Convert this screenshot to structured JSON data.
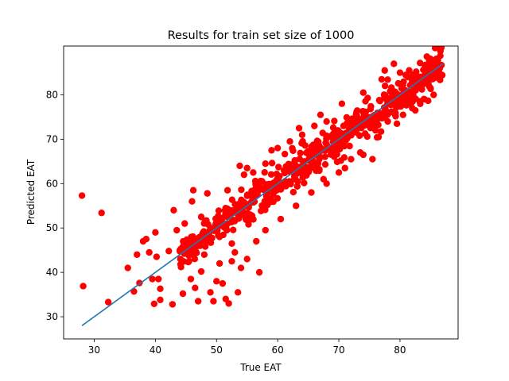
{
  "chart_data": {
    "type": "scatter",
    "title": "Results for train set size of 1000",
    "xlabel": "True EAT",
    "ylabel": "Predicted EAT",
    "xlim": [
      25,
      89.5
    ],
    "ylim": [
      25,
      91
    ],
    "xticks": [
      30,
      40,
      50,
      60,
      70,
      80
    ],
    "yticks": [
      30,
      40,
      50,
      60,
      70,
      80
    ],
    "grid": false,
    "point_color": "#ff0000",
    "line_color": "#1f77b4",
    "reference_line": {
      "x": [
        28,
        87
      ],
      "y": [
        28,
        87
      ]
    },
    "points": [
      [
        28,
        57.3
      ],
      [
        28.2,
        36.9
      ],
      [
        31.2,
        53.4
      ],
      [
        32.3,
        33.3
      ],
      [
        35.5,
        41.0
      ],
      [
        36.5,
        35.7
      ],
      [
        37.0,
        44.0
      ],
      [
        37.4,
        37.6
      ],
      [
        38.0,
        47.0
      ],
      [
        38.5,
        47.5
      ],
      [
        39.0,
        44.5
      ],
      [
        39.5,
        38.5
      ],
      [
        40.0,
        49.0
      ],
      [
        40.2,
        43.5
      ],
      [
        40.5,
        38.5
      ],
      [
        40.8,
        36.3
      ],
      [
        39.8,
        32.9
      ],
      [
        40.8,
        33.8
      ],
      [
        42.2,
        44.8
      ],
      [
        42.8,
        32.8
      ],
      [
        43.0,
        54.0
      ],
      [
        44.0,
        45.0
      ],
      [
        44.5,
        35.2
      ],
      [
        45.0,
        47.0
      ],
      [
        45.5,
        42.5
      ],
      [
        45.8,
        38.5
      ],
      [
        46.2,
        58.5
      ],
      [
        46.5,
        36.5
      ],
      [
        47.0,
        33.5
      ],
      [
        47.5,
        40.2
      ],
      [
        48.0,
        44.0
      ],
      [
        48.5,
        57.8
      ],
      [
        49.0,
        35.5
      ],
      [
        49.5,
        33.5
      ],
      [
        50.0,
        38.0
      ],
      [
        50.5,
        42.0
      ],
      [
        51.0,
        37.5
      ],
      [
        51.5,
        34.0
      ],
      [
        52.0,
        33.0
      ],
      [
        52.5,
        42.5
      ],
      [
        53.0,
        44.5
      ],
      [
        53.5,
        35.5
      ],
      [
        54.0,
        41.0
      ],
      [
        55.0,
        43.0
      ],
      [
        56.5,
        47.0
      ],
      [
        57.0,
        40.0
      ],
      [
        55.5,
        53.0
      ],
      [
        53.8,
        64.0
      ],
      [
        54.5,
        62.0
      ],
      [
        56.0,
        62.5
      ],
      [
        58.0,
        64.5
      ],
      [
        60.0,
        68.0
      ],
      [
        62.0,
        69.5
      ],
      [
        64.0,
        71.0
      ],
      [
        66.0,
        73.0
      ],
      [
        68.0,
        74.0
      ],
      [
        67.5,
        61.0
      ],
      [
        70.0,
        62.5
      ],
      [
        72.0,
        65.5
      ],
      [
        74.0,
        66.5
      ],
      [
        75.5,
        65.5
      ],
      [
        76.0,
        72.0
      ],
      [
        77.5,
        85.5
      ],
      [
        79.0,
        87.0
      ],
      [
        80.0,
        85.0
      ],
      [
        81.5,
        85.5
      ],
      [
        83.0,
        82.0
      ],
      [
        85.0,
        87.0
      ],
      [
        86.5,
        86.0
      ],
      [
        84.0,
        79.0
      ],
      [
        82.0,
        77.0
      ],
      [
        80.5,
        75.5
      ],
      [
        78.0,
        74.0
      ],
      [
        46.0,
        56.0
      ],
      [
        47.5,
        52.5
      ],
      [
        48.8,
        49.2
      ],
      [
        50.5,
        48.0
      ],
      [
        52.5,
        46.5
      ],
      [
        58.0,
        49.5
      ],
      [
        60.5,
        52.0
      ],
      [
        63.0,
        55.0
      ],
      [
        65.5,
        58.0
      ],
      [
        68.0,
        60.0
      ],
      [
        71.0,
        63.5
      ],
      [
        73.5,
        67.0
      ],
      [
        76.5,
        70.5
      ],
      [
        79.5,
        73.5
      ],
      [
        82.5,
        76.5
      ],
      [
        85.5,
        80.0
      ],
      [
        86.8,
        84.5
      ],
      [
        44.8,
        51.0
      ],
      [
        43.5,
        49.5
      ],
      [
        51.8,
        58.5
      ],
      [
        55.0,
        63.5
      ],
      [
        59.0,
        67.5
      ],
      [
        63.5,
        72.5
      ],
      [
        67.0,
        75.5
      ],
      [
        70.5,
        78.0
      ],
      [
        74.0,
        80.5
      ],
      [
        77.0,
        83.5
      ]
    ],
    "band": {
      "slope": 1.0,
      "intercept": 0.0,
      "x_range": [
        44.0,
        87.0
      ],
      "half_width": 4.2,
      "density_per_unit": 140
    }
  }
}
